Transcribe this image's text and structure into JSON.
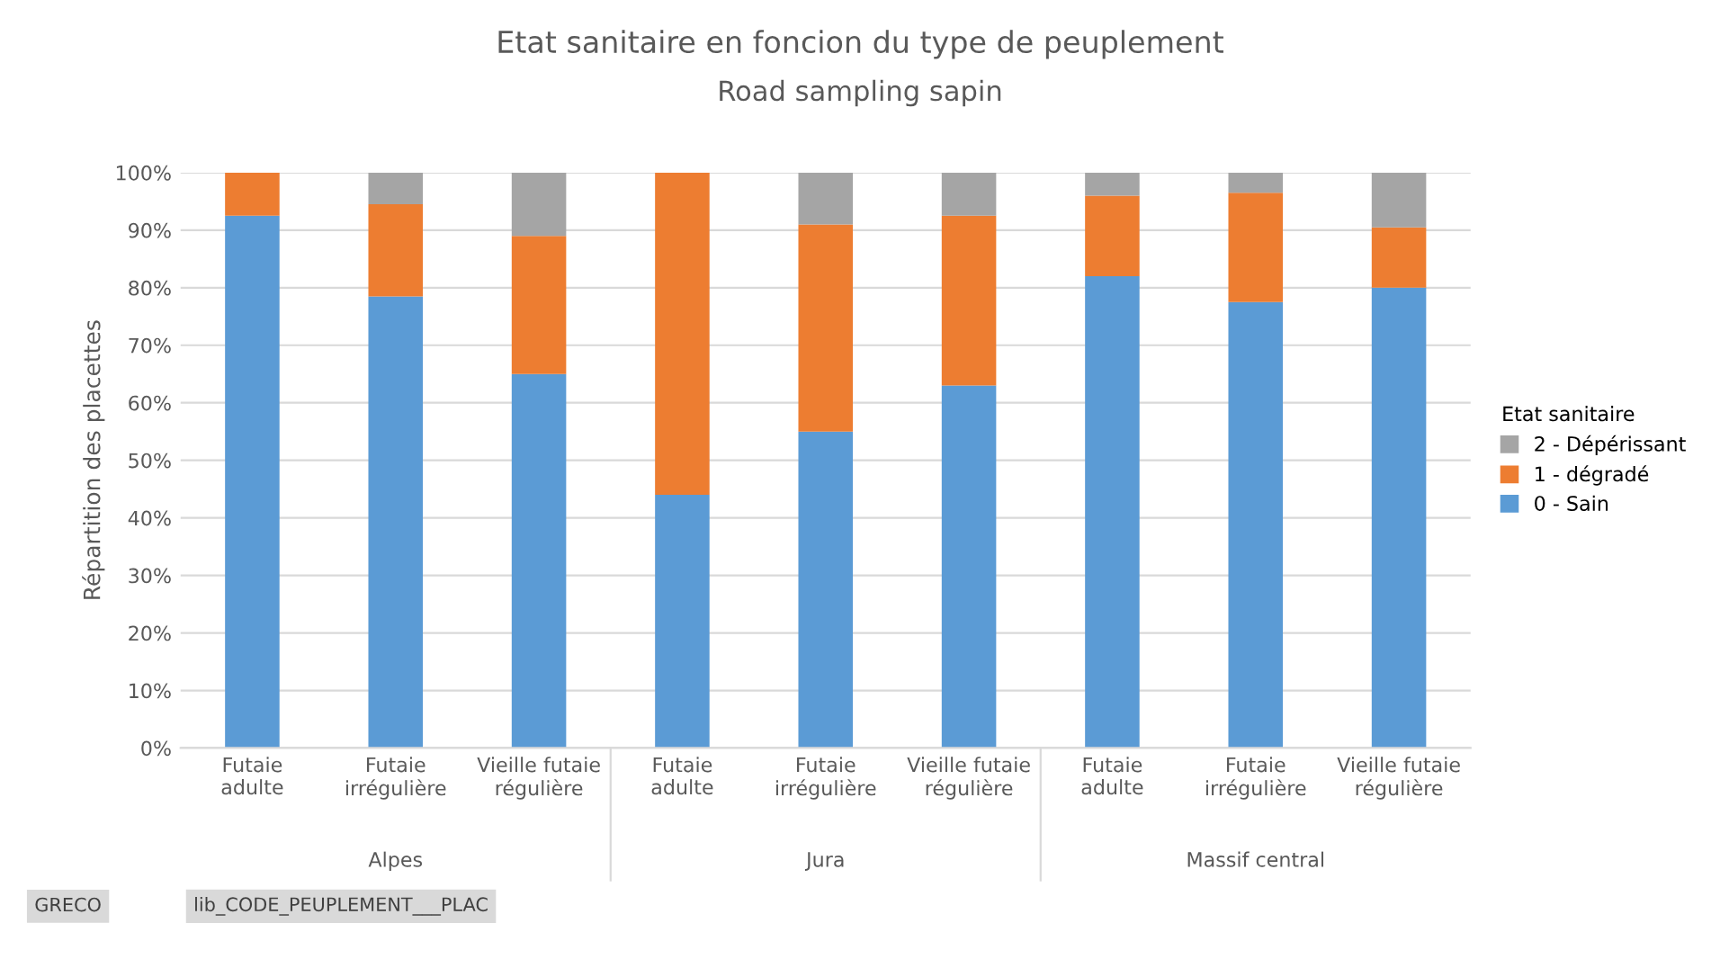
{
  "chart_data": {
    "type": "bar",
    "stacked": true,
    "title": "Etat sanitaire en foncion du type de peuplement",
    "subtitle": "Road sampling sapin",
    "ylabel": "Répartition des placettes",
    "legend_title": "Etat sanitaire",
    "categories": [
      "Futaie\nadulte",
      "Futaie\nirrégulière",
      "Vieille futaie\nrégulière",
      "Futaie\nadulte",
      "Futaie\nirrégulière",
      "Vieille futaie\nrégulière",
      "Futaie\nadulte",
      "Futaie\nirrégulière",
      "Vieille futaie\nrégulière"
    ],
    "series": [
      {
        "name": "0 - Sain",
        "color": "#5b9bd5",
        "values": [
          92.5,
          78.5,
          65,
          44,
          55,
          63,
          82,
          77.5,
          80
        ]
      },
      {
        "name": "1 - dégradé",
        "color": "#ed7d31",
        "values": [
          7.5,
          16,
          24,
          56,
          36,
          29.5,
          14,
          19,
          10.5
        ]
      },
      {
        "name": "2 - Dépérissant",
        "color": "#a5a5a5",
        "values": [
          0,
          5.5,
          11,
          0,
          9,
          7.5,
          4,
          3.5,
          9.5
        ]
      }
    ],
    "ylim": [
      0,
      100
    ],
    "yticks": [
      {
        "value": 0,
        "label": "0%"
      },
      {
        "value": 10,
        "label": "10%"
      },
      {
        "value": 20,
        "label": "20%"
      },
      {
        "value": 30,
        "label": "30%"
      },
      {
        "value": 40,
        "label": "40%"
      },
      {
        "value": 50,
        "label": "50%"
      },
      {
        "value": 60,
        "label": "60%"
      },
      {
        "value": 70,
        "label": "70%"
      },
      {
        "value": 80,
        "label": "80%"
      },
      {
        "value": 90,
        "label": "90%"
      },
      {
        "value": 100,
        "label": "100%"
      }
    ],
    "grid": "y",
    "legend": "right",
    "annotations": [
      "Alpes",
      "Jura",
      "Massif central",
      "GRECO",
      "lib_CODE_PEUPLEMENT___PLAC"
    ]
  }
}
